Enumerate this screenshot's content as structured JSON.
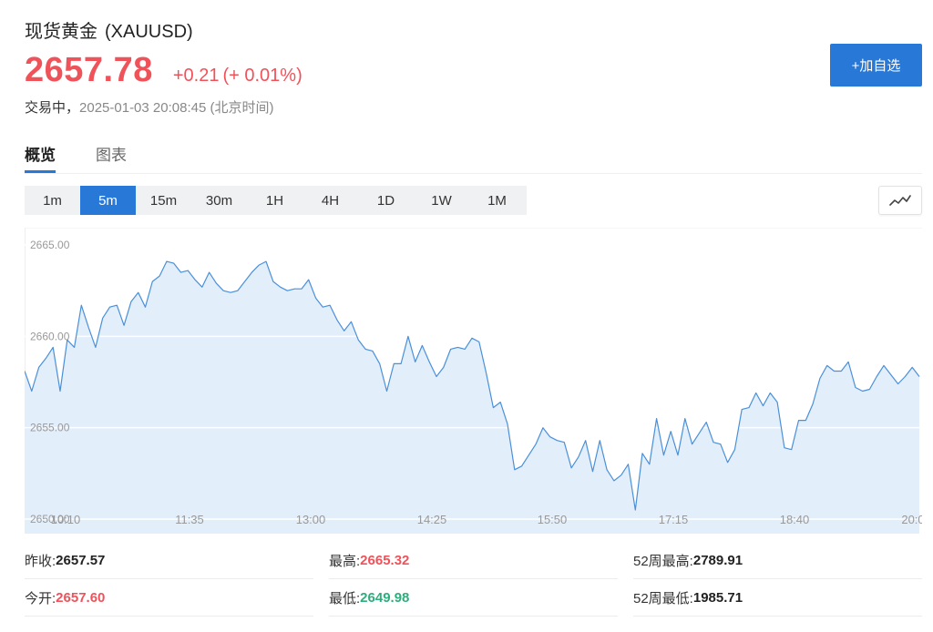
{
  "header": {
    "name": "现货黄金",
    "code": "(XAUUSD)",
    "price": "2657.78",
    "change": "+0.21",
    "change_pct": "(+ 0.01%)",
    "status": "交易中，",
    "timestamp": "2025-01-03 20:08:45",
    "timezone": "(北京时间)",
    "add_button": "+加自选",
    "up_color": "#f0525a",
    "down_color": "#2fad7d"
  },
  "tabs": [
    {
      "label": "概览",
      "active": true
    },
    {
      "label": "图表",
      "active": false
    }
  ],
  "intervals": {
    "items": [
      "1m",
      "5m",
      "15m",
      "30m",
      "1H",
      "4H",
      "1D",
      "1W",
      "1M"
    ],
    "selected": "5m"
  },
  "chart_type_icon": "line-chart-icon",
  "chart_data": {
    "type": "area",
    "title": "",
    "xlabel": "",
    "ylabel": "",
    "ylim": [
      2650,
      2665
    ],
    "yticks": [
      "2650.00",
      "2655.00",
      "2660.00",
      "2665.00"
    ],
    "xticks": [
      "10:10",
      "11:35",
      "13:00",
      "14:25",
      "15:50",
      "17:15",
      "18:40",
      "20:0"
    ],
    "grid": true,
    "line_color": "#4a90d9",
    "fill_color": "#e3eefb",
    "series": [
      {
        "values": [
          2658.1,
          2657.0,
          2658.3,
          2658.8,
          2659.4,
          2657.0,
          2659.8,
          2659.4,
          2661.7,
          2660.5,
          2659.4,
          2661.0,
          2661.6,
          2661.7,
          2660.6,
          2661.9,
          2662.4,
          2661.6,
          2663.0,
          2663.3,
          2664.1,
          2664.0,
          2663.5,
          2663.6,
          2663.1,
          2662.7,
          2663.5,
          2662.9,
          2662.5,
          2662.4,
          2662.5,
          2663.0,
          2663.5,
          2663.9,
          2664.1,
          2663.0,
          2662.7,
          2662.5,
          2662.6,
          2662.6,
          2663.1,
          2662.1,
          2661.6,
          2661.7,
          2660.9,
          2660.3,
          2660.8,
          2659.8,
          2659.3,
          2659.2,
          2658.5,
          2657.0,
          2658.5,
          2658.5,
          2660.0,
          2658.6,
          2659.5,
          2658.6,
          2657.8,
          2658.3,
          2659.3,
          2659.4,
          2659.3,
          2659.9,
          2659.7,
          2658.0,
          2656.1,
          2656.4,
          2655.2,
          2652.7,
          2652.9,
          2653.5,
          2654.1,
          2655.0,
          2654.5,
          2654.3,
          2654.2,
          2652.8,
          2653.4,
          2654.3,
          2652.6,
          2654.3,
          2652.7,
          2652.1,
          2652.4,
          2653.0,
          2650.5,
          2653.6,
          2653.0,
          2655.5,
          2653.5,
          2654.8,
          2653.5,
          2655.5,
          2654.1,
          2654.7,
          2655.3,
          2654.2,
          2654.1,
          2653.1,
          2653.8,
          2656.0,
          2656.1,
          2656.9,
          2656.2,
          2656.9,
          2656.4,
          2653.9,
          2653.8,
          2655.4,
          2655.4,
          2656.3,
          2657.7,
          2658.4,
          2658.1,
          2658.1,
          2658.6,
          2657.2,
          2657.0,
          2657.1,
          2657.8,
          2658.4,
          2657.9,
          2657.4,
          2657.8,
          2658.3,
          2657.8
        ]
      }
    ]
  },
  "stats": [
    [
      {
        "label": "昨收:",
        "value": "2657.57",
        "tone": "neutral"
      },
      {
        "label": "最高:",
        "value": "2665.32",
        "tone": "up"
      },
      {
        "label": "52周最高:",
        "value": "2789.91",
        "tone": "neutral"
      }
    ],
    [
      {
        "label": "今开:",
        "value": "2657.60",
        "tone": "up"
      },
      {
        "label": "最低:",
        "value": "2649.98",
        "tone": "down"
      },
      {
        "label": "52周最低:",
        "value": "1985.71",
        "tone": "neutral"
      }
    ]
  ]
}
